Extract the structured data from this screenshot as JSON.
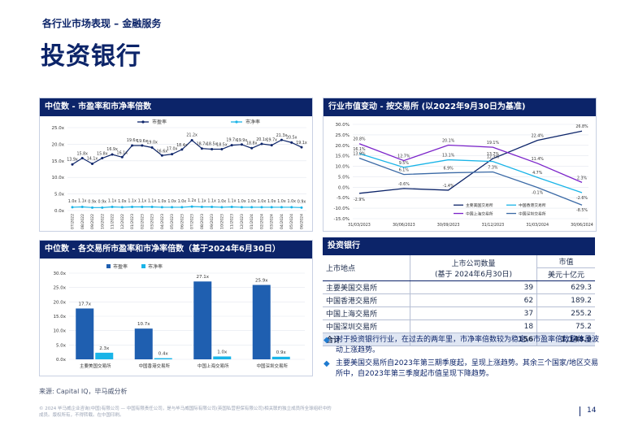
{
  "header": {
    "supertitle": "各行业市场表现 – 金融服务",
    "title": "投资银行"
  },
  "colors": {
    "navy": "#0c2469",
    "blue": "#1f5fb0",
    "cyan": "#19b4e8",
    "purple": "#7a22c9",
    "grey_blue": "#3b6aa6"
  },
  "panel1": {
    "title": "中位数 - 市盈率和市净率倍数"
  },
  "panel2": {
    "title": "行业市值变动 - 按交易所 (以2022年9月30日为基准)"
  },
  "panel3": {
    "title": "中位数 - 各交易所市盈率和市净率倍数（基于2024年6月30日）"
  },
  "panel4": {
    "title": "投资银行"
  },
  "chart_data": [
    {
      "type": "line",
      "legend": [
        "市盈率",
        "市净率"
      ],
      "ylim": [
        0,
        25
      ],
      "yticks": [
        "0.0x",
        "5.0x",
        "10.0x",
        "15.0x",
        "20.0x",
        "25.0x"
      ],
      "x": [
        "07/2022",
        "08/2022",
        "09/2022",
        "10/2022",
        "11/2022",
        "12/2022",
        "01/2023",
        "02/2023",
        "03/2023",
        "04/2023",
        "05/2023",
        "06/2023",
        "07/2023",
        "08/2023",
        "09/2023",
        "10/2023",
        "11/2023",
        "12/2023",
        "01/2024",
        "02/2024",
        "03/2024",
        "04/2024",
        "05/2024",
        "06/2024"
      ],
      "series": [
        {
          "name": "市盈率",
          "values": [
            13.9,
            15.8,
            14.1,
            15.8,
            16.9,
            16.1,
            19.6,
            19.6,
            19.0,
            16.6,
            17.0,
            18.4,
            21.2,
            18.7,
            18.5,
            18.5,
            19.7,
            19.9,
            18.8,
            20.1,
            19.7,
            21.3,
            20.5,
            19.1
          ],
          "labels": [
            "13.9x",
            "15.8x",
            "14.1x",
            "15.8x",
            "16.9x",
            "16.1x",
            "19.6x",
            "19.6x",
            "19.0x",
            "16.6x",
            "17.0x",
            "18.4x",
            "21.2x",
            "18.7x",
            "18.5x",
            "18.5x",
            "19.7x",
            "19.9x",
            "18.8x",
            "20.1x",
            "19.7x",
            "21.3x",
            "20.5x",
            "19.1x"
          ]
        },
        {
          "name": "市净率",
          "values": [
            1.0,
            1.1,
            0.9,
            0.9,
            1.1,
            1.0,
            1.1,
            1.1,
            1.1,
            1.0,
            1.0,
            1.0,
            1.2,
            1.1,
            1.1,
            1.0,
            1.1,
            1.0,
            1.0,
            1.0,
            1.0,
            1.0,
            1.0,
            0.9
          ],
          "labels": [
            "1.0x",
            "1.1x",
            "0.9x",
            "0.9x",
            "1.1x",
            "1.0x",
            "1.1x",
            "1.1x",
            "1.1x",
            "1.0x",
            "1.0x",
            "1.0x",
            "1.2x",
            "1.1x",
            "1.1x",
            "1.0x",
            "1.1x",
            "1.0x",
            "1.0x",
            "1.0x",
            "1.0x",
            "1.0x",
            "1.0x",
            "0.9x"
          ]
        }
      ]
    },
    {
      "type": "line",
      "ylim": [
        -15,
        30
      ],
      "yticks": [
        "-15.0%",
        "-10.0%",
        "-5.0%",
        "0.0%",
        "5.0%",
        "10.0%",
        "15.0%",
        "20.0%",
        "25.0%",
        "30.0%"
      ],
      "x": [
        "31/03/2023",
        "30/06/2023",
        "30/09/2023",
        "31/12/2023",
        "31/03/2024",
        "30/06/2024"
      ],
      "series": [
        {
          "name": "主要美国交易所",
          "values": [
            -2.9,
            -0.6,
            -1.4,
            13.7,
            22.4,
            26.8
          ],
          "labels": [
            "-2.9%",
            "-0.6%",
            "-1.4%",
            "13.7%",
            "22.4%",
            "26.8%"
          ]
        },
        {
          "name": "中国香港交易所",
          "values": [
            16.1,
            9.5,
            13.1,
            12.3,
            4.7,
            -2.6
          ],
          "labels": [
            "16.1%",
            "9.5%",
            "13.1%",
            "12.3%",
            "4.7%",
            "-2.6%"
          ]
        },
        {
          "name": "中国上海交易所",
          "values": [
            20.8,
            12.7,
            20.1,
            19.1,
            11.4,
            2.3
          ],
          "labels": [
            "20.8%",
            "12.7%",
            "20.1%",
            "19.1%",
            "11.4%",
            "2.3%"
          ]
        },
        {
          "name": "中国深圳交易所",
          "values": [
            13.9,
            6.1,
            6.9,
            7.3,
            -0.1,
            -8.5
          ],
          "labels": [
            "13.9%",
            "6.1%",
            "6.9%",
            "7.3%",
            "-0.1%",
            "-8.5%"
          ]
        }
      ]
    },
    {
      "type": "bar",
      "legend": [
        "市盈率",
        "市净率"
      ],
      "ylim": [
        0,
        30
      ],
      "yticks": [
        "0.0x",
        "5.0x",
        "10.0x",
        "15.0x",
        "20.0x",
        "25.0x",
        "30.0x"
      ],
      "categories": [
        "主要美国交易所",
        "中国香港交易所",
        "中国上海交易所",
        "中国深圳交易所"
      ],
      "series": [
        {
          "name": "市盈率",
          "values": [
            17.7,
            10.7,
            27.1,
            25.9
          ],
          "labels": [
            "17.7x",
            "10.7x",
            "27.1x",
            "25.9x"
          ]
        },
        {
          "name": "市净率",
          "values": [
            2.3,
            0.4,
            1.0,
            0.9
          ],
          "labels": [
            "2.3x",
            "0.4x",
            "1.0x",
            "0.9x"
          ]
        }
      ]
    },
    {
      "type": "table",
      "header": {
        "col1": "上市地点",
        "col2a": "上市公司数量",
        "col2b": "(基于 2024年6月30日)",
        "col3a": "市值",
        "col3b": "美元十亿元"
      },
      "rows": [
        {
          "name": "主要美国交易所",
          "count": "39",
          "value": "629.3"
        },
        {
          "name": "中国香港交易所",
          "count": "62",
          "value": "189.2"
        },
        {
          "name": "中国上海交易所",
          "count": "37",
          "value": "255.2"
        },
        {
          "name": "中国深圳交易所",
          "count": "18",
          "value": "75.2"
        }
      ],
      "total": {
        "name": "合计",
        "count": "156",
        "value": "1,148.9"
      }
    }
  ],
  "bullets": [
    "对于投资银行行业，在过去的两年里，市净率倍数较为稳定，市盈率倍数整体呈波动上涨趋势。",
    "主要美国交易所自2023年第三期季度起，呈现上涨趋势。其余三个国家/地区交易所中，自2023年第三季度起市值呈现下降趋势。"
  ],
  "footer": {
    "source": "来源: Capital IQ，毕马威分析",
    "disclaimer": "© 2024 毕马威企业咨询(中国)有限公司 — 中国有限责任公司，是与毕马威国际有限公司(英国私营担保有限公司)相关联的独立成员所全球组织中的成员。版权所有，不得转载。在中国印刷。",
    "page": "14"
  }
}
